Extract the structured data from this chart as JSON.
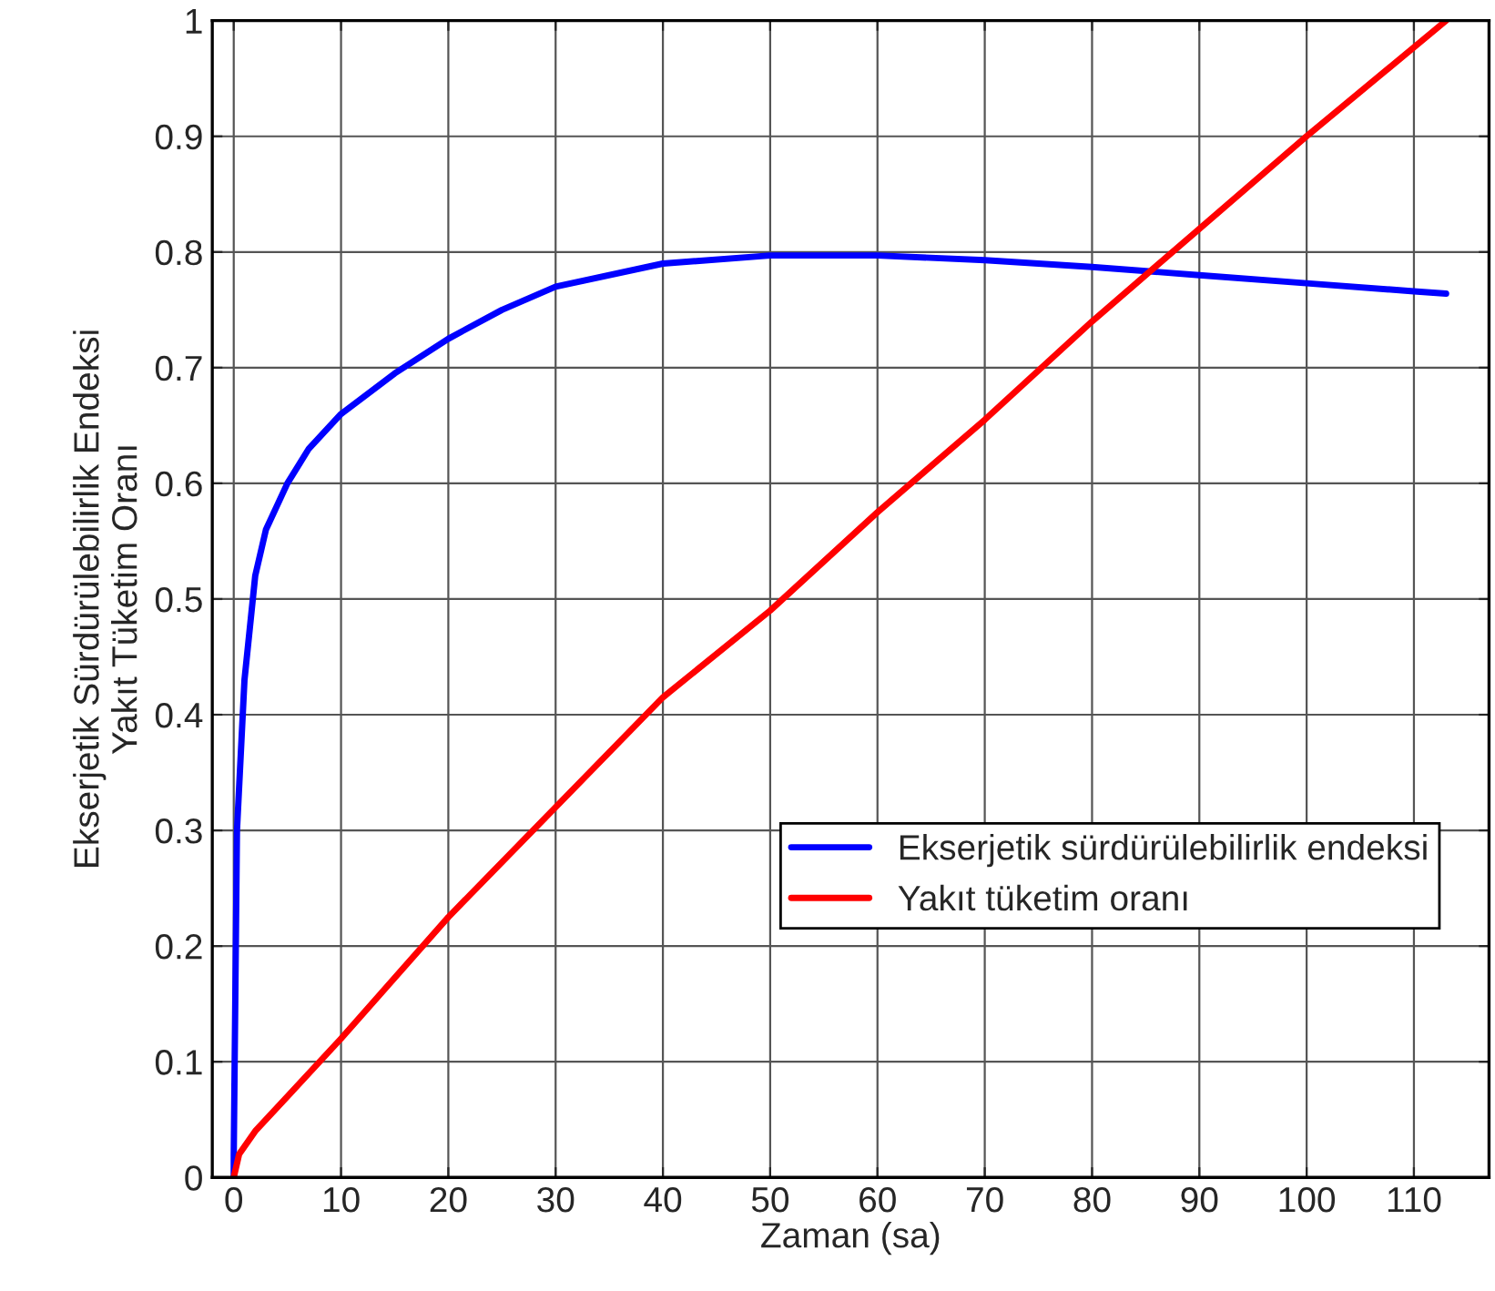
{
  "chart_data": {
    "type": "line",
    "xlabel": "Zaman (sa)",
    "ylabel": "Ekserjetik Sürdürülebilirlik Endeksi\nYakıt Tüketim Oranı",
    "xlim": [
      -2,
      117
    ],
    "ylim": [
      0,
      1
    ],
    "xticks": [
      0,
      10,
      20,
      30,
      40,
      50,
      60,
      70,
      80,
      90,
      100,
      110
    ],
    "yticks": [
      0,
      0.1,
      0.2,
      0.3,
      0.4,
      0.5,
      0.6,
      0.7,
      0.8,
      0.9,
      1
    ],
    "grid": true,
    "legend": "lower right",
    "line_style": "solid",
    "series": [
      {
        "name": "Ekserjetik sürdürülebilirlik endeksi",
        "color": "#0000ff",
        "x": [
          0,
          0,
          0.3,
          1,
          2,
          3,
          5,
          7,
          10,
          15,
          20,
          25,
          30,
          40,
          50,
          60,
          70,
          80,
          90,
          100,
          110,
          113
        ],
        "values": [
          0,
          0.02,
          0.3,
          0.43,
          0.52,
          0.56,
          0.6,
          0.63,
          0.66,
          0.695,
          0.725,
          0.75,
          0.77,
          0.79,
          0.797,
          0.797,
          0.793,
          0.787,
          0.78,
          0.773,
          0.766,
          0.764
        ]
      },
      {
        "name": "Yakıt tüketim oranı",
        "color": "#ff0000",
        "x": [
          0,
          0.5,
          2,
          5,
          10,
          20,
          30,
          40,
          50,
          60,
          70,
          80,
          90,
          100,
          113
        ],
        "values": [
          0,
          0.02,
          0.04,
          0.07,
          0.12,
          0.225,
          0.32,
          0.415,
          0.49,
          0.575,
          0.655,
          0.74,
          0.82,
          0.9,
          1.0
        ]
      }
    ]
  }
}
